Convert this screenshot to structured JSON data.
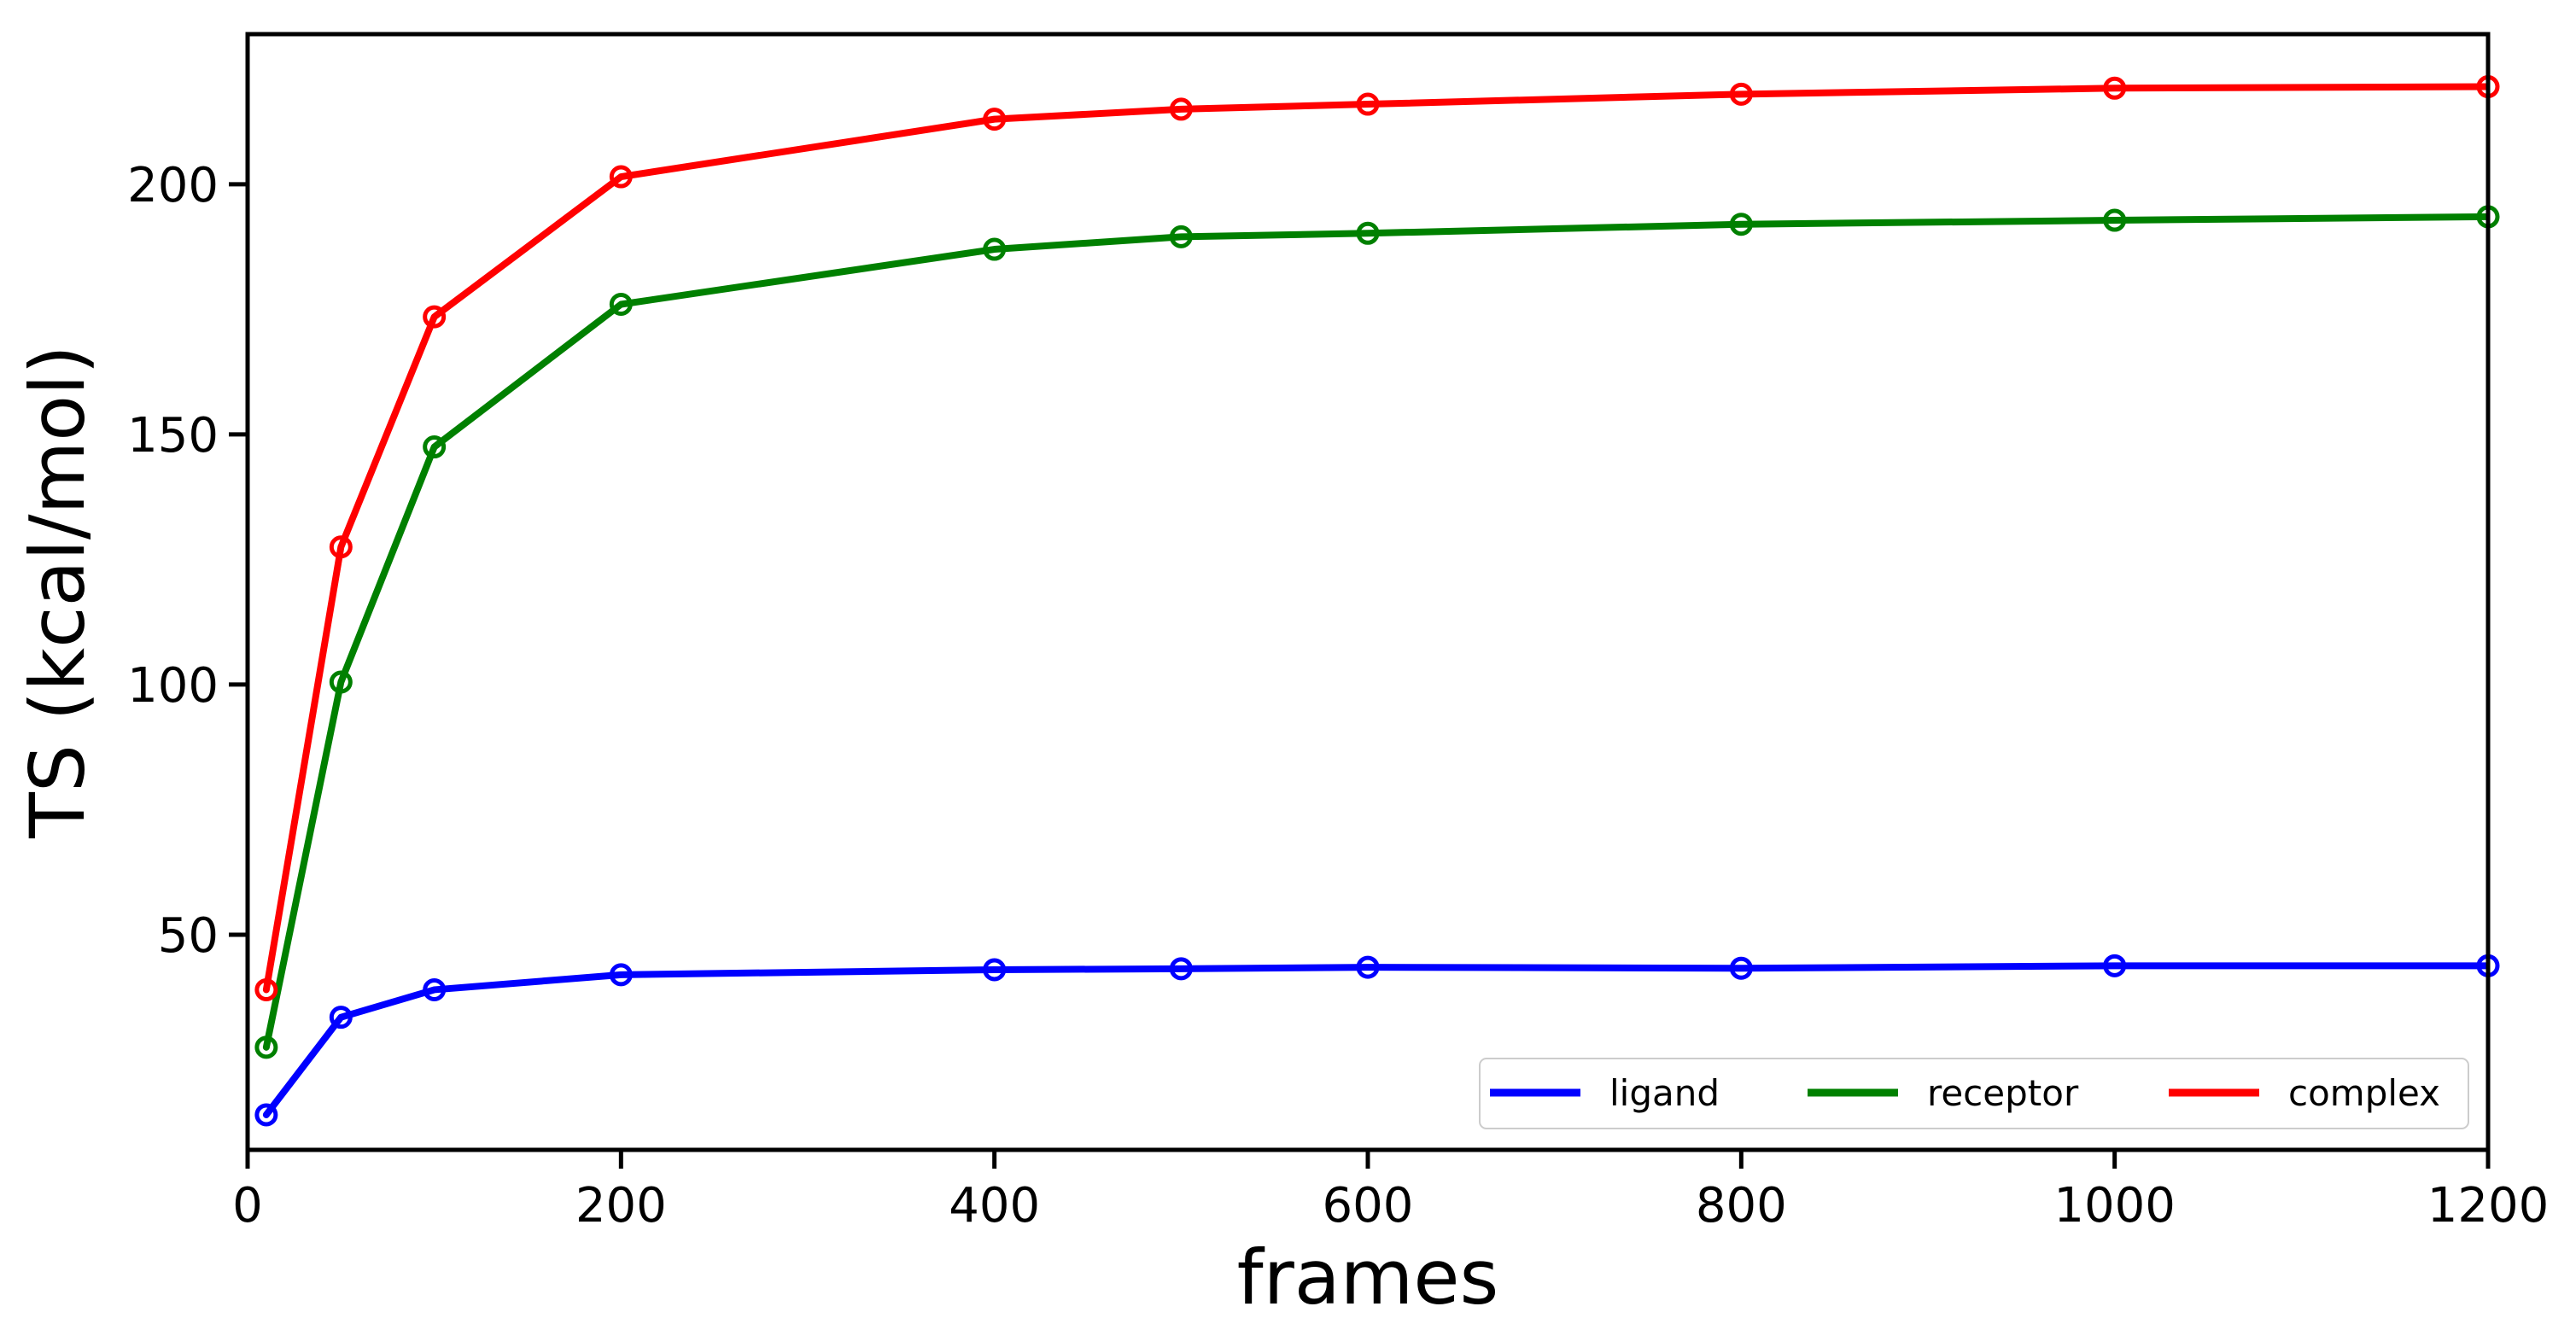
{
  "chart_data": {
    "type": "line",
    "title": "",
    "xlabel": "frames",
    "ylabel": "TS (kcal/mol)",
    "xlim": [
      0,
      1200
    ],
    "ylim": [
      7,
      230
    ],
    "xticks": [
      0,
      200,
      400,
      600,
      800,
      1000,
      1200
    ],
    "yticks": [
      50,
      100,
      150,
      200
    ],
    "grid": false,
    "legend": {
      "placement": "lower-right",
      "columns": 3
    },
    "marker": "open-circle",
    "x": [
      10,
      50,
      100,
      200,
      400,
      500,
      600,
      800,
      1000,
      1200
    ],
    "series": [
      {
        "name": "ligand",
        "color": "#0000ff",
        "values": [
          14,
          33.5,
          39,
          42,
          43,
          43.2,
          43.5,
          43.3,
          43.8,
          43.8
        ]
      },
      {
        "name": "receptor",
        "color": "#008000",
        "values": [
          27.5,
          100.5,
          147.5,
          176,
          187,
          189.5,
          190.2,
          192,
          192.8,
          193.5
        ]
      },
      {
        "name": "complex",
        "color": "#ff0000",
        "values": [
          39,
          127.5,
          173.5,
          201.5,
          213,
          215,
          216,
          218,
          219.2,
          219.5
        ]
      }
    ]
  }
}
